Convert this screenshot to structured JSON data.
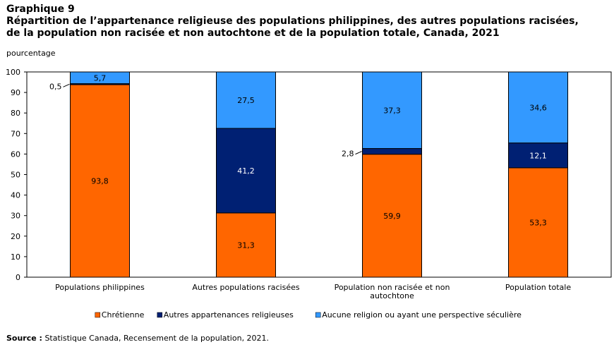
{
  "header": {
    "label": "Graphique 9",
    "title_line1": "Répartition de l’appartenance religieuse des populations philippines, des autres populations racisées,",
    "title_line2": "de la population non racisée et non autochtone et de la population totale, Canada, 2021"
  },
  "unit_label": "pourcentage",
  "source": {
    "label": "Source :",
    "text": "Statistique Canada, Recensement de la population, 2021."
  },
  "chart_data": {
    "type": "bar",
    "stacked": true,
    "categories": [
      [
        "Populations philippines"
      ],
      [
        "Autres populations racisées"
      ],
      [
        "Population non racisée et non",
        "autochtone"
      ],
      [
        "Population totale"
      ]
    ],
    "series": [
      {
        "name": "Chrétienne",
        "color": "#ff6600",
        "values": [
          93.8,
          31.3,
          59.9,
          53.3
        ],
        "labels": [
          "93,8",
          "31,3",
          "59,9",
          "53,3"
        ]
      },
      {
        "name": "Autres appartenances religieuses",
        "color": "#002073",
        "values": [
          0.5,
          41.2,
          2.8,
          12.1
        ],
        "labels": [
          "0,5",
          "41,2",
          "2,8",
          "12,1"
        ]
      },
      {
        "name": "Aucune religion ou ayant une perspective séculière",
        "color": "#3399ff",
        "values": [
          5.7,
          27.5,
          37.3,
          34.6
        ],
        "labels": [
          "5,7",
          "27,5",
          "37,3",
          "34,6"
        ]
      }
    ],
    "ylabel": "pourcentage",
    "ylim": [
      0,
      100
    ],
    "yticks": [
      0,
      10,
      20,
      30,
      40,
      50,
      60,
      70,
      80,
      90,
      100
    ],
    "grid": false,
    "legend_position": "bottom"
  }
}
